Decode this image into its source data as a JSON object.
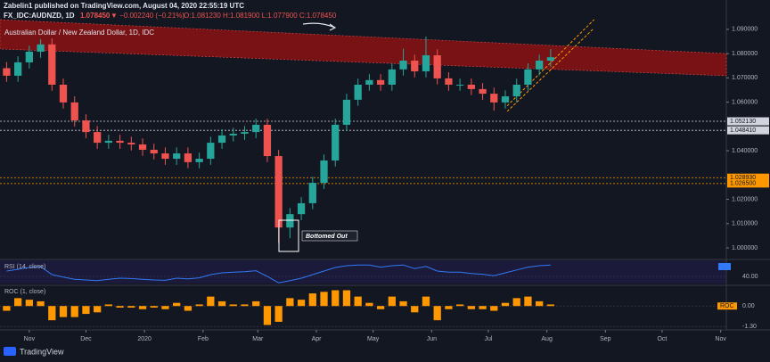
{
  "header": {
    "publisher": "Zabelin1 published on TradingView.com, August 04, 2020 22:55:19 UTC",
    "symbol": "FX_IDC:AUDNZD, 1D",
    "last": "1.078450",
    "change": "▼ −0.002240 (−0.21%)",
    "ohlc": "O:1.081230 H:1.081900 L:1.077900 C:1.078450"
  },
  "chart_data": {
    "type": "candlestick",
    "title": "Australian Dollar / New Zealand Dollar, 1D, IDC",
    "x": [
      -12,
      -6,
      0,
      6,
      12,
      18,
      24,
      30,
      36,
      42,
      48,
      54,
      60,
      66,
      72,
      78,
      84,
      90,
      96,
      102,
      108,
      114,
      120,
      126,
      132,
      138,
      144,
      150,
      156,
      162,
      168,
      174,
      180,
      186,
      192,
      198,
      204,
      210,
      216,
      222,
      228,
      234,
      240,
      246,
      252,
      258,
      264,
      270,
      276
    ],
    "open": [
      1.074,
      1.0709,
      1.0764,
      1.0808,
      1.0838,
      1.0672,
      1.0599,
      1.0525,
      1.0477,
      1.0433,
      1.0441,
      1.0433,
      1.0426,
      1.0404,
      1.0389,
      1.0367,
      1.0389,
      1.0353,
      1.0367,
      1.0433,
      1.0463,
      1.047,
      1.0477,
      1.0507,
      1.0378,
      1.0084,
      1.0139,
      1.0184,
      1.0268,
      1.036,
      1.0507,
      1.061,
      1.0672,
      1.0691,
      1.0672,
      1.0735,
      1.0771,
      1.0727,
      1.0793,
      1.0698,
      1.0672,
      1.0672,
      1.0654,
      1.0635,
      1.0599,
      1.0624,
      1.0672,
      1.0735,
      1.0771
    ],
    "high": [
      1.0765,
      1.0789,
      1.0833,
      1.086,
      1.0863,
      1.0697,
      1.0624,
      1.055,
      1.0502,
      1.0466,
      1.0466,
      1.0458,
      1.0451,
      1.0429,
      1.0414,
      1.0414,
      1.0414,
      1.0392,
      1.0458,
      1.0488,
      1.0495,
      1.0502,
      1.0532,
      1.0532,
      1.0403,
      1.0164,
      1.0209,
      1.0293,
      1.0385,
      1.0532,
      1.0635,
      1.0697,
      1.0716,
      1.0716,
      1.076,
      1.082,
      1.0796,
      1.087,
      1.0818,
      1.0723,
      1.0697,
      1.0697,
      1.0679,
      1.066,
      1.0649,
      1.0697,
      1.076,
      1.0796,
      1.0819
    ],
    "low": [
      1.0684,
      1.0684,
      1.0739,
      1.0783,
      1.0647,
      1.0574,
      1.05,
      1.0452,
      1.0408,
      1.0408,
      1.0408,
      1.0401,
      1.0379,
      1.0364,
      1.0342,
      1.0342,
      1.0328,
      1.0328,
      1.0342,
      1.0408,
      1.0438,
      1.0445,
      1.0452,
      1.0353,
      1.002,
      1.004,
      1.0114,
      1.0159,
      1.0243,
      1.0335,
      1.0482,
      1.0585,
      1.0647,
      1.0647,
      1.0647,
      1.071,
      1.0702,
      1.0702,
      1.0673,
      1.0647,
      1.0647,
      1.0629,
      1.061,
      1.0565,
      1.0574,
      1.0599,
      1.0647,
      1.071,
      1.0746
    ],
    "close": [
      1.0709,
      1.0764,
      1.0808,
      1.0838,
      1.0672,
      1.0599,
      1.0525,
      1.0477,
      1.0433,
      1.0441,
      1.0433,
      1.0426,
      1.0404,
      1.0389,
      1.0367,
      1.0389,
      1.0353,
      1.0367,
      1.0433,
      1.0463,
      1.047,
      1.0477,
      1.0507,
      1.0378,
      1.0084,
      1.0139,
      1.0184,
      1.0268,
      1.036,
      1.0507,
      1.061,
      1.0672,
      1.0691,
      1.0672,
      1.0735,
      1.0771,
      1.0727,
      1.0793,
      1.0698,
      1.0672,
      1.0672,
      1.0654,
      1.0635,
      1.0599,
      1.0624,
      1.0672,
      1.0735,
      1.0771,
      1.0785
    ],
    "up_color": "#26a69a",
    "down_color": "#ef5350",
    "xlim": [
      -15.5,
      369
    ],
    "xticks": [
      {
        "value": 0,
        "label": "Nov"
      },
      {
        "value": 30,
        "label": "Dec"
      },
      {
        "value": 61,
        "label": "2020"
      },
      {
        "value": 92,
        "label": "Feb"
      },
      {
        "value": 121,
        "label": "Mar"
      },
      {
        "value": 152,
        "label": "Apr"
      },
      {
        "value": 182,
        "label": "May"
      },
      {
        "value": 213,
        "label": "Jun"
      },
      {
        "value": 243,
        "label": "Jul"
      },
      {
        "value": 274,
        "label": "Aug"
      },
      {
        "value": 305,
        "label": "Sep"
      },
      {
        "value": 335,
        "label": "Oct"
      },
      {
        "value": 366,
        "label": "Nov"
      }
    ],
    "ylim": [
      0.9956,
      1.094
    ],
    "yticks": [
      {
        "value": 1.09,
        "label": "1.090000"
      },
      {
        "value": 1.08,
        "label": "1.080000"
      },
      {
        "value": 1.07,
        "label": "1.070000"
      },
      {
        "value": 1.06,
        "label": "1.060000"
      },
      {
        "value": 1.04,
        "label": "1.040000"
      },
      {
        "value": 1.02,
        "label": "1.020000"
      },
      {
        "value": 1.01,
        "label": "1.010000"
      },
      {
        "value": 1.0,
        "label": "1.000000"
      }
    ],
    "levels": [
      {
        "value": 1.05213,
        "label": "1.052130",
        "color": "#d1d4dc"
      },
      {
        "value": 1.04841,
        "label": "1.048410",
        "color": "#d1d4dc"
      },
      {
        "value": 1.02893,
        "label": "1.028930",
        "color": "#ff9800"
      },
      {
        "value": 1.0265,
        "label": "1.026500",
        "color": "#ff9800"
      }
    ],
    "channel": {
      "x": [
        -15.5,
        369
      ],
      "upper": [
        1.094,
        1.08
      ],
      "lower": [
        1.0819,
        1.0709
      ],
      "color": "#8b1212"
    },
    "trend": {
      "x": [
        253,
        299
      ],
      "upper": [
        1.0585,
        1.094
      ],
      "lower": [
        1.0562,
        1.0905
      ],
      "color": "#ff9800"
    },
    "annotation": "Bottomed Out",
    "indicators": [
      {
        "type": "line",
        "title": "RSI (14, close)",
        "color": "#3179f5",
        "ylim": [
          20,
          80
        ],
        "yticks": [
          {
            "value": 40,
            "label": "40.00"
          }
        ],
        "values": [
          55,
          60,
          65,
          68,
          45,
          38,
          32,
          30,
          28,
          32,
          35,
          34,
          32,
          30,
          29,
          35,
          33,
          36,
          45,
          50,
          52,
          53,
          56,
          40,
          22,
          28,
          35,
          45,
          55,
          65,
          70,
          72,
          72,
          66,
          70,
          72,
          62,
          68,
          55,
          52,
          52,
          48,
          46,
          42,
          50,
          58,
          66,
          70,
          72
        ]
      },
      {
        "type": "bar",
        "title": "ROC (1, close)",
        "tag": "ROC",
        "color": "#ff9800",
        "ylim": [
          -1.4,
          1.2
        ],
        "yticks": [
          {
            "value": 0,
            "label": "0.00"
          },
          {
            "value": -1.3,
            "label": "-1.30"
          }
        ],
        "values": [
          -0.3,
          0.5,
          0.4,
          0.3,
          -0.9,
          -0.7,
          -0.7,
          -0.5,
          -0.4,
          0.1,
          -0.1,
          -0.1,
          -0.2,
          -0.1,
          -0.2,
          0.2,
          -0.3,
          0.1,
          0.6,
          0.3,
          0.1,
          0.1,
          0.3,
          -1.2,
          -1.0,
          0.5,
          0.4,
          0.8,
          0.9,
          1.0,
          1.0,
          0.6,
          0.2,
          -0.2,
          0.6,
          0.3,
          -0.4,
          0.6,
          -0.9,
          -0.2,
          0.1,
          -0.2,
          -0.2,
          -0.3,
          0.2,
          0.5,
          0.6,
          0.3,
          0.1
        ]
      }
    ]
  },
  "footer": {
    "brand": "TradingView"
  }
}
